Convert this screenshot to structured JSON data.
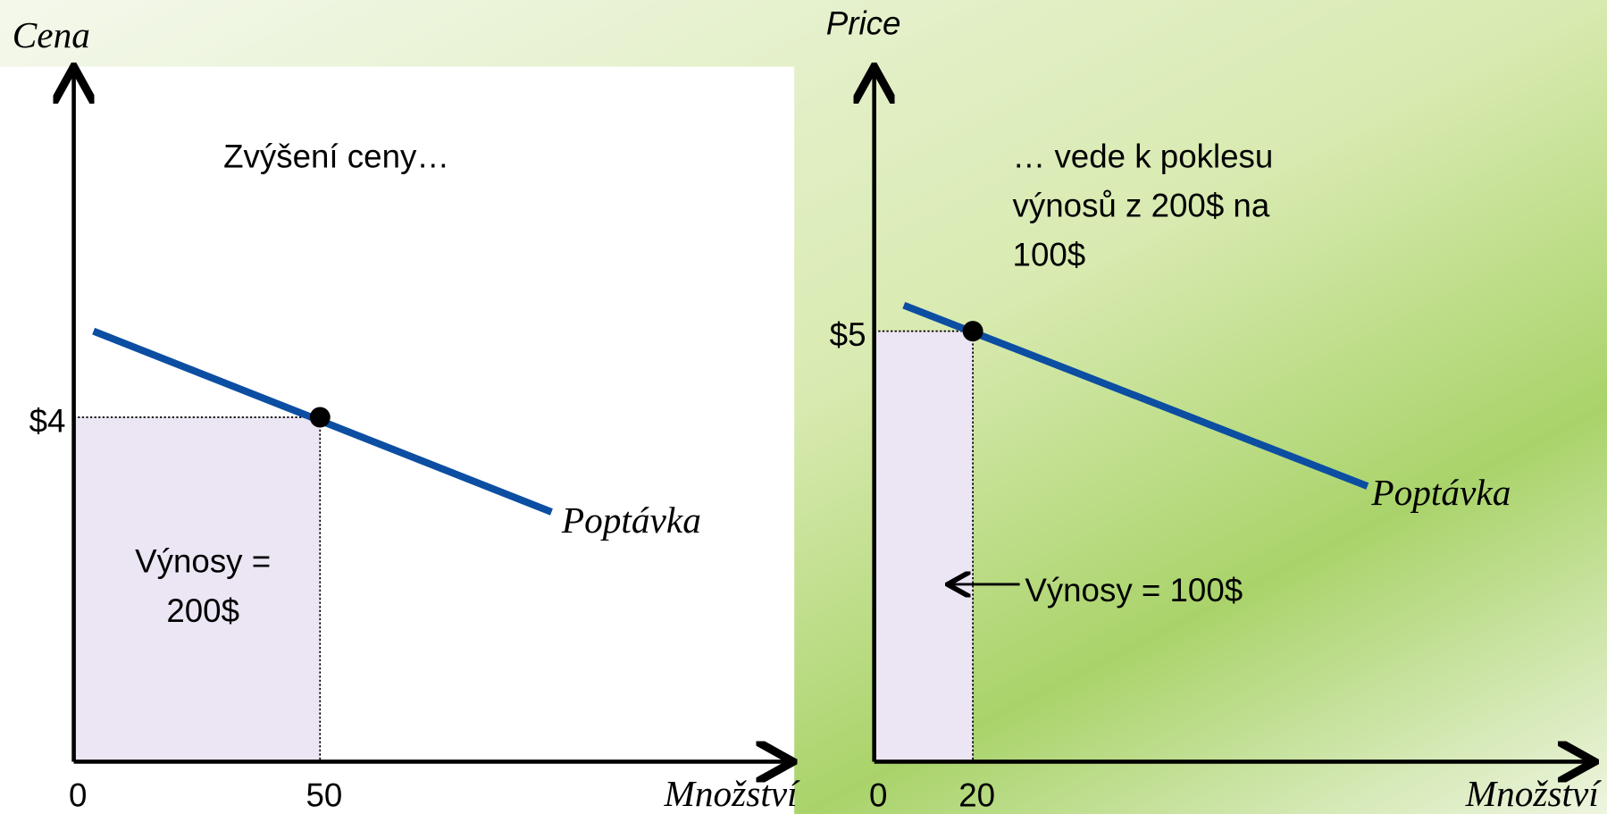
{
  "chart_data": [
    {
      "type": "line",
      "y_label": "Cena",
      "x_label": "Množství",
      "xlim": [
        0,
        144
      ],
      "ylim": [
        0,
        8
      ],
      "xticks": [
        0,
        50
      ],
      "yticks": [
        {
          "value": 4,
          "label": "$4"
        }
      ],
      "series": [
        {
          "name": "Poptávka",
          "color": "#0b4ea2",
          "x": [
            4,
            97
          ],
          "values": [
            5.0,
            2.9
          ]
        }
      ],
      "point": {
        "x": 50,
        "y": 4
      },
      "annotation": [
        "Zvýšení ceny…"
      ],
      "revenue_label": [
        "Výnosy =",
        "200$"
      ]
    },
    {
      "type": "line",
      "y_label": "Price",
      "x_label": "Množství",
      "xlim": [
        0,
        144
      ],
      "ylim": [
        0,
        8
      ],
      "xticks": [
        0,
        20
      ],
      "yticks": [
        {
          "value": 5,
          "label": "$5"
        }
      ],
      "series": [
        {
          "name": "Poptávka",
          "color": "#0b4ea2",
          "x": [
            6,
            100
          ],
          "values": [
            5.3,
            3.2
          ]
        }
      ],
      "point": {
        "x": 20,
        "y": 5
      },
      "annotation": [
        "… vede k poklesu",
        "výnosů z 200$ na",
        "100$"
      ],
      "revenue_label": [
        "Výnosy = 100$"
      ]
    }
  ]
}
